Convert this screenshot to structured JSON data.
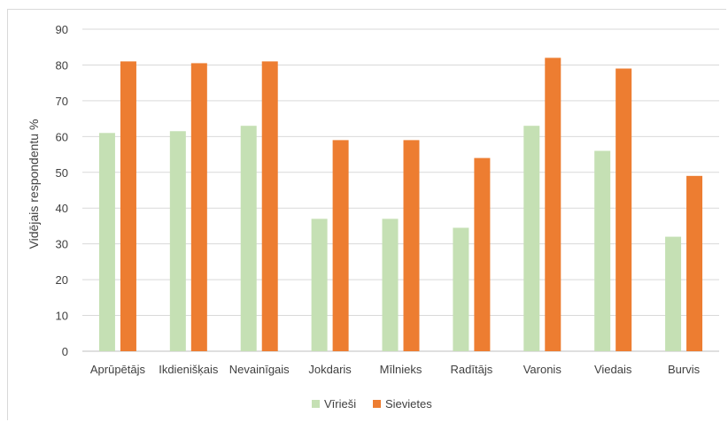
{
  "chart_data": {
    "type": "bar",
    "title": "",
    "xlabel": "",
    "ylabel": "Vidējais respondentu %",
    "ylim": [
      0,
      90
    ],
    "yticks": [
      0,
      10,
      20,
      30,
      40,
      50,
      60,
      70,
      80,
      90
    ],
    "grid": true,
    "legend_position": "bottom",
    "categories": [
      "Aprūpētājs",
      "Ikdienišķais",
      "Nevainīgais",
      "Jokdaris",
      "Mīlnieks",
      "Radītājs",
      "Varonis",
      "Viedais",
      "Burvis"
    ],
    "series": [
      {
        "name": "Vīrieši",
        "color": "#c5e0b4",
        "values": [
          61,
          61.5,
          63,
          37,
          37,
          34.5,
          63,
          56,
          32
        ]
      },
      {
        "name": "Sievietes",
        "color": "#ed7d31",
        "values": [
          81,
          80.5,
          81,
          59,
          59,
          54,
          82,
          79,
          49
        ]
      }
    ]
  }
}
